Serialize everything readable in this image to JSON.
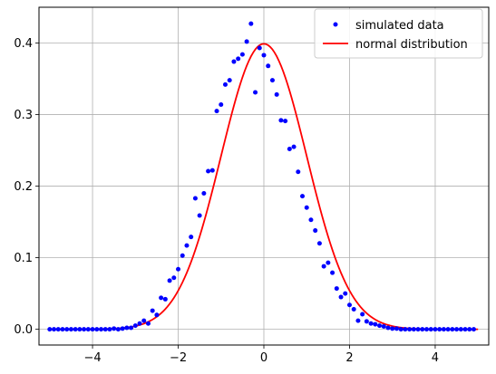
{
  "chart_data": {
    "type": "scatter",
    "xlim": [
      -5.25,
      5.25
    ],
    "ylim": [
      -0.022,
      0.45
    ],
    "xticks": [
      -4,
      -2,
      0,
      2,
      4
    ],
    "yticks": [
      0.0,
      0.1,
      0.2,
      0.3,
      0.4
    ],
    "xtick_labels": [
      "−4",
      "−2",
      "0",
      "2",
      "4"
    ],
    "ytick_labels": [
      "0.0",
      "0.1",
      "0.2",
      "0.3",
      "0.4"
    ],
    "grid": true,
    "legend_position": "upper-right",
    "series": [
      {
        "name": "simulated data",
        "kind": "points",
        "color": "#0000ff",
        "x": [
          -5.0,
          -4.9,
          -4.8,
          -4.7,
          -4.6,
          -4.5,
          -4.4,
          -4.3,
          -4.2,
          -4.1,
          -4.0,
          -3.9,
          -3.8,
          -3.7,
          -3.6,
          -3.5,
          -3.4,
          -3.3,
          -3.2,
          -3.1,
          -3.0,
          -2.9,
          -2.8,
          -2.7,
          -2.6,
          -2.5,
          -2.4,
          -2.3,
          -2.2,
          -2.1,
          -2.0,
          -1.9,
          -1.8,
          -1.7,
          -1.6,
          -1.5,
          -1.4,
          -1.3,
          -1.2,
          -1.1,
          -1.0,
          -0.9,
          -0.8,
          -0.7,
          -0.6,
          -0.5,
          -0.4,
          -0.3,
          -0.2,
          -0.1,
          0.0,
          0.1,
          0.2,
          0.3,
          0.4,
          0.5,
          0.6,
          0.7,
          0.8,
          0.9,
          1.0,
          1.1,
          1.2,
          1.3,
          1.4,
          1.5,
          1.6,
          1.7,
          1.8,
          1.9,
          2.0,
          2.1,
          2.2,
          2.3,
          2.4,
          2.5,
          2.6,
          2.7,
          2.8,
          2.9,
          3.0,
          3.1,
          3.2,
          3.3,
          3.4,
          3.5,
          3.6,
          3.7,
          3.8,
          3.9,
          4.0,
          4.1,
          4.2,
          4.3,
          4.4,
          4.5,
          4.6,
          4.7,
          4.8,
          4.9
        ],
        "y": [
          0.0,
          0.0,
          0.0,
          0.0,
          0.0,
          0.0,
          0.0,
          0.0,
          0.0,
          0.0,
          0.0,
          0.0,
          0.0,
          0.0,
          0.0,
          0.001,
          0.0,
          0.001,
          0.002,
          0.002,
          0.005,
          0.008,
          0.012,
          0.008,
          0.026,
          0.02,
          0.044,
          0.042,
          0.068,
          0.072,
          0.084,
          0.103,
          0.117,
          0.129,
          0.183,
          0.159,
          0.19,
          0.221,
          0.222,
          0.305,
          0.314,
          0.342,
          0.348,
          0.374,
          0.378,
          0.384,
          0.402,
          0.427,
          0.331,
          0.393,
          0.383,
          0.368,
          0.348,
          0.328,
          0.292,
          0.291,
          0.252,
          0.255,
          0.22,
          0.186,
          0.17,
          0.153,
          0.138,
          0.12,
          0.088,
          0.093,
          0.079,
          0.057,
          0.045,
          0.05,
          0.034,
          0.028,
          0.012,
          0.021,
          0.011,
          0.008,
          0.007,
          0.005,
          0.004,
          0.002,
          0.001,
          0.001,
          0.0,
          0.0,
          0.0,
          0.0,
          0.0,
          0.0,
          0.0,
          0.0,
          0.0,
          0.0,
          0.0,
          0.0,
          0.0,
          0.0,
          0.0,
          0.0,
          0.0,
          0.0
        ]
      },
      {
        "name": "normal distribution",
        "kind": "line",
        "color": "#ff0000",
        "function": "standard normal pdf",
        "x_range": [
          -5,
          5
        ]
      }
    ]
  }
}
